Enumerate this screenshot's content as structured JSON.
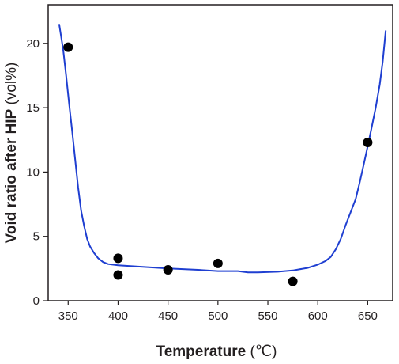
{
  "chart_data": {
    "type": "scatter",
    "xlabel": "Temperature",
    "xlabel_unit": "(℃)",
    "ylabel": "Void ratio after HIP",
    "ylabel_unit": "(vol%)",
    "xlim": [
      330,
      675
    ],
    "ylim": [
      0,
      23
    ],
    "x_ticks": [
      350,
      400,
      450,
      500,
      550,
      600,
      650
    ],
    "y_ticks": [
      0,
      5,
      10,
      15,
      20
    ],
    "grid": false,
    "colors": {
      "points": "#000000",
      "curve": "#1f3fd1",
      "axes": "#231f20"
    },
    "series": [
      {
        "type": "scatter",
        "x": [
          350,
          400,
          400,
          450,
          500,
          575,
          650
        ],
        "y": [
          19.7,
          3.3,
          2.0,
          2.4,
          2.9,
          1.5,
          12.3
        ]
      },
      {
        "type": "line",
        "x": [
          341,
          345,
          348,
          351,
          354,
          357,
          360,
          363,
          366,
          369,
          372,
          376,
          380,
          385,
          390,
          400,
          420,
          450,
          480,
          500,
          520,
          530,
          540,
          560,
          575,
          590,
          600,
          608,
          613,
          618,
          623,
          628,
          633,
          638,
          642,
          646,
          650,
          654,
          658,
          662,
          665,
          668
        ],
        "y": [
          21.5,
          19.5,
          17.5,
          15.3,
          13.2,
          11.0,
          8.8,
          7.0,
          5.8,
          4.8,
          4.2,
          3.7,
          3.3,
          3.0,
          2.85,
          2.75,
          2.65,
          2.5,
          2.4,
          2.3,
          2.3,
          2.2,
          2.2,
          2.25,
          2.35,
          2.55,
          2.8,
          3.1,
          3.4,
          4.0,
          4.8,
          5.9,
          6.9,
          7.9,
          9.2,
          10.6,
          12.0,
          13.5,
          15.0,
          16.8,
          18.6,
          21.0
        ]
      }
    ]
  }
}
